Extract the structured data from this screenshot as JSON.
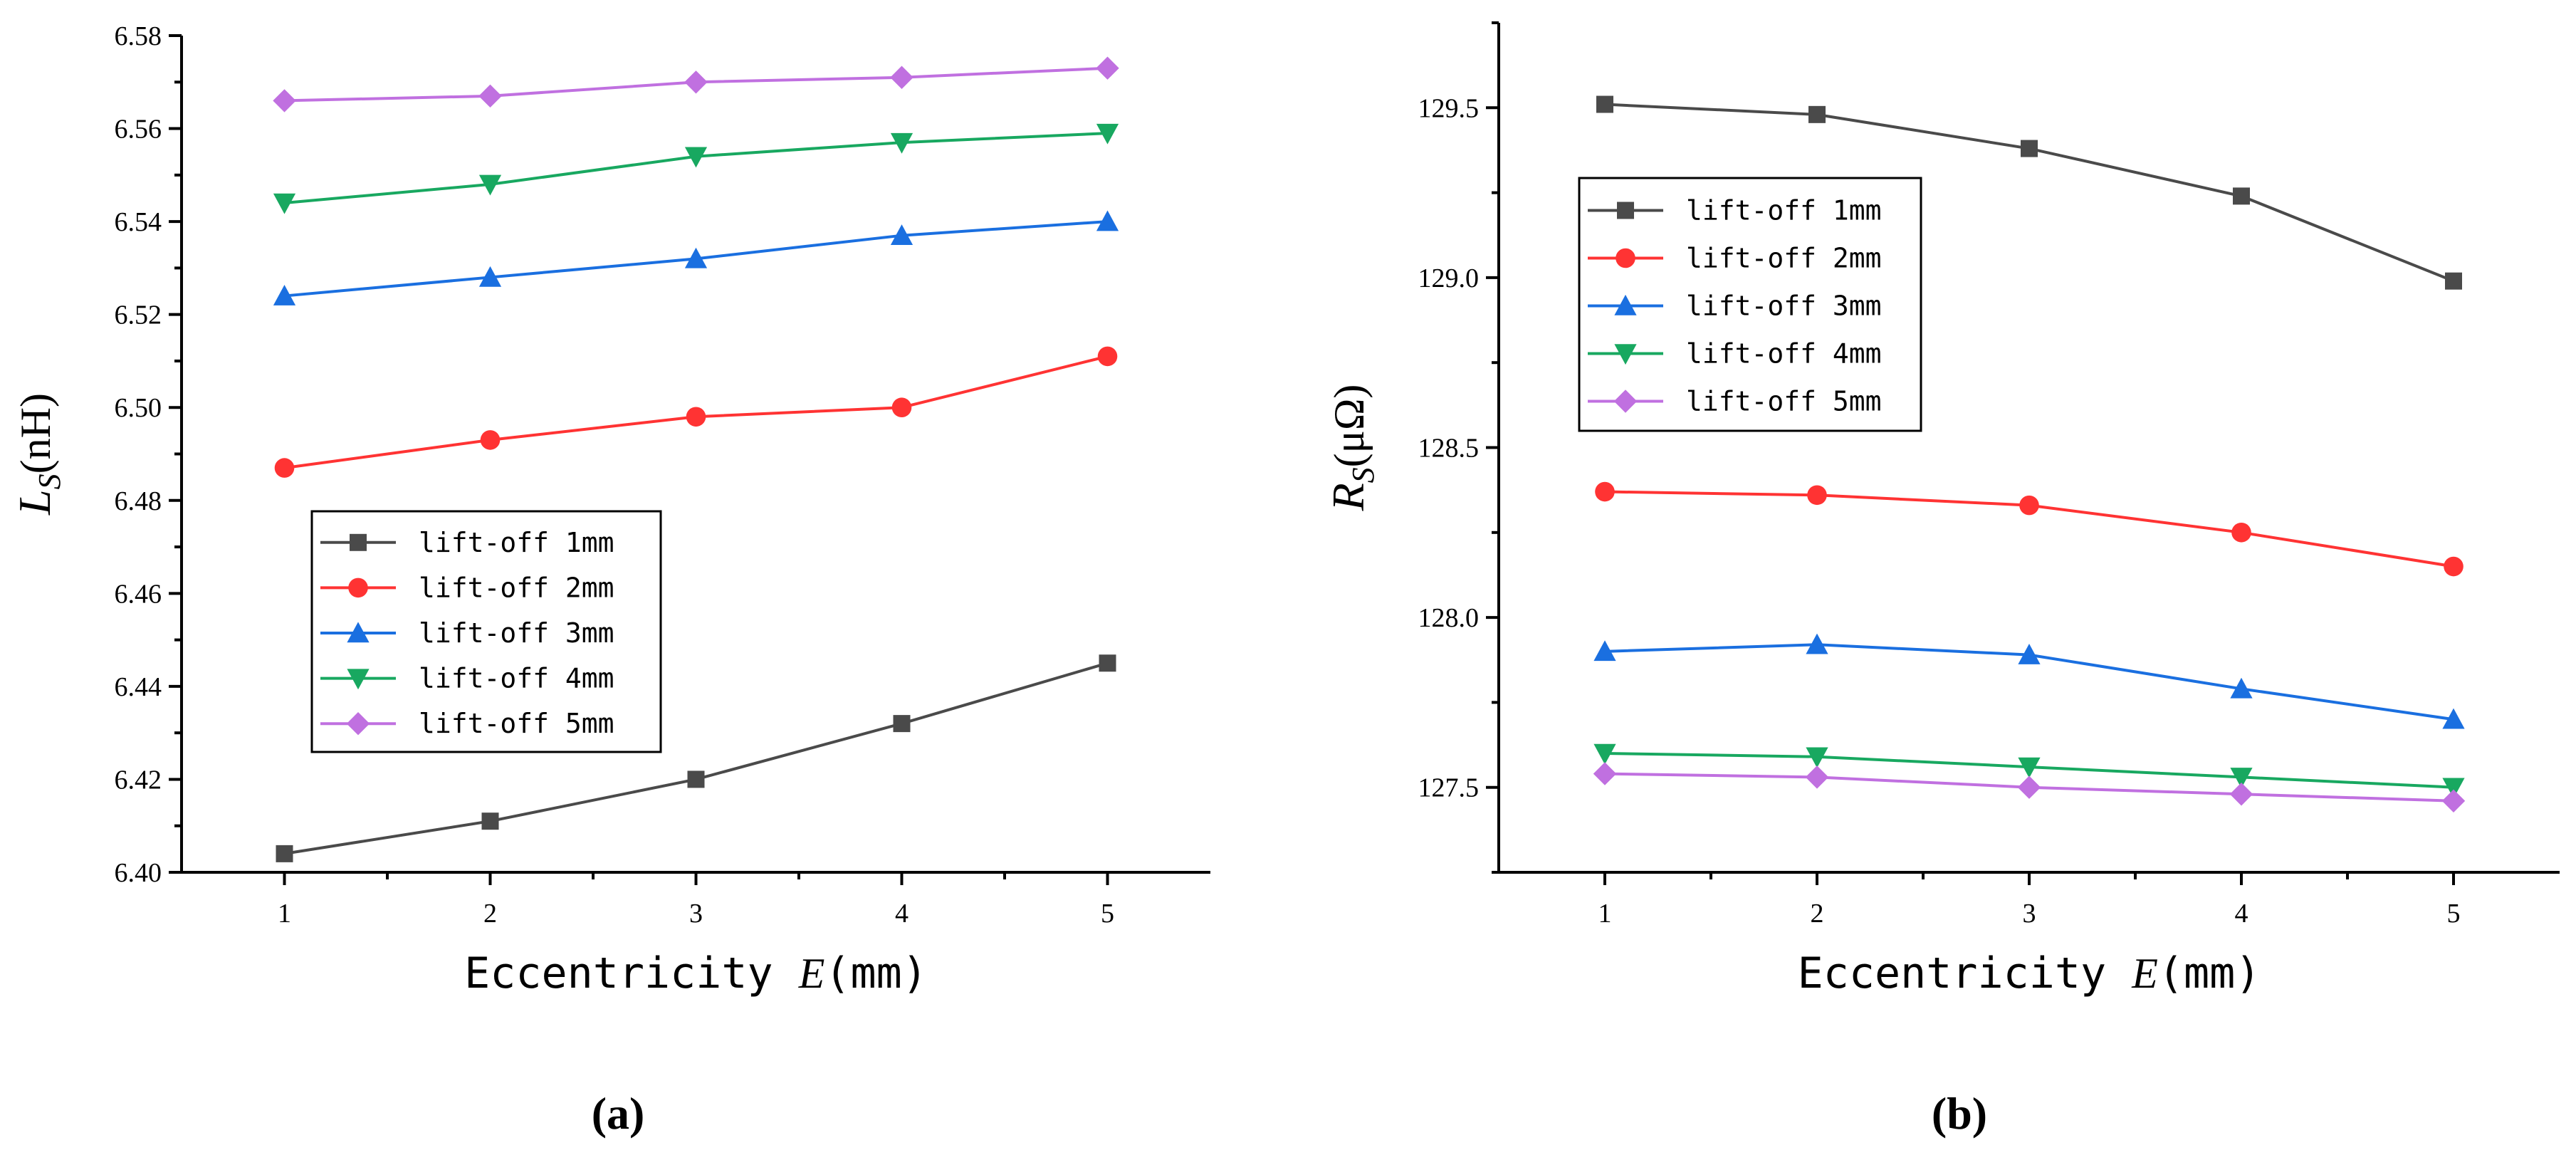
{
  "panel_labels": [
    "(a)",
    "(b)"
  ],
  "colors": {
    "series": [
      "#4a4a4a",
      "#ff3333",
      "#1a6fe0",
      "#18a860",
      "#c070e0"
    ],
    "axis": "#000000"
  },
  "markers": [
    "square",
    "circle",
    "triangle-up",
    "triangle-down",
    "diamond"
  ],
  "chart_data": [
    {
      "type": "line",
      "title": "",
      "panel": "a",
      "xlabel_prefix": "Eccentricity ",
      "xlabel_var": "E",
      "xlabel_unit": "(mm)",
      "ylabel_var": "L",
      "ylabel_sub": "S",
      "ylabel_unit": "(nH)",
      "x": [
        1,
        2,
        3,
        4,
        5
      ],
      "xlim": [
        0.5,
        5.5
      ],
      "ylim": [
        6.4,
        6.58
      ],
      "yticks": [
        6.4,
        6.42,
        6.44,
        6.46,
        6.48,
        6.5,
        6.52,
        6.54,
        6.56,
        6.58
      ],
      "ytick_labels": [
        "6.40",
        "6.42",
        "6.44",
        "6.46",
        "6.48",
        "6.50",
        "6.52",
        "6.54",
        "6.56",
        "6.58"
      ],
      "xticks": [
        1,
        2,
        3,
        4,
        5
      ],
      "xtick_labels": [
        "1",
        "2",
        "3",
        "4",
        "5"
      ],
      "legend_position": "lower-left",
      "series": [
        {
          "name": "lift-off 1mm",
          "values": [
            6.404,
            6.411,
            6.42,
            6.432,
            6.445
          ]
        },
        {
          "name": "lift-off 2mm",
          "values": [
            6.487,
            6.493,
            6.498,
            6.5,
            6.511
          ]
        },
        {
          "name": "lift-off 3mm",
          "values": [
            6.524,
            6.528,
            6.532,
            6.537,
            6.54
          ]
        },
        {
          "name": "lift-off 4mm",
          "values": [
            6.544,
            6.548,
            6.554,
            6.557,
            6.559
          ]
        },
        {
          "name": "lift-off 5mm",
          "values": [
            6.566,
            6.567,
            6.57,
            6.571,
            6.573
          ]
        }
      ]
    },
    {
      "type": "line",
      "title": "",
      "panel": "b",
      "xlabel_prefix": "Eccentricity ",
      "xlabel_var": "E",
      "xlabel_unit": "(mm)",
      "ylabel_var": "R",
      "ylabel_sub": "S",
      "ylabel_unit": "(μΩ)",
      "x": [
        1,
        2,
        3,
        4,
        5
      ],
      "xlim": [
        0.5,
        5.5
      ],
      "ylim": [
        127.25,
        129.75
      ],
      "yticks": [
        127.5,
        128.0,
        128.5,
        129.0,
        129.5
      ],
      "ytick_labels": [
        "127.5",
        "128.0",
        "128.5",
        "129.0",
        "129.5"
      ],
      "xticks": [
        1,
        2,
        3,
        4,
        5
      ],
      "xtick_labels": [
        "1",
        "2",
        "3",
        "4",
        "5"
      ],
      "legend_position": "upper-left",
      "series": [
        {
          "name": "lift-off 1mm",
          "values": [
            129.51,
            129.48,
            129.38,
            129.24,
            128.99
          ]
        },
        {
          "name": "lift-off 2mm",
          "values": [
            128.37,
            128.36,
            128.33,
            128.25,
            128.15
          ]
        },
        {
          "name": "lift-off 3mm",
          "values": [
            127.9,
            127.92,
            127.89,
            127.79,
            127.7
          ]
        },
        {
          "name": "lift-off 4mm",
          "values": [
            127.6,
            127.59,
            127.56,
            127.53,
            127.5
          ]
        },
        {
          "name": "lift-off 5mm",
          "values": [
            127.54,
            127.53,
            127.5,
            127.48,
            127.46
          ]
        }
      ]
    }
  ]
}
